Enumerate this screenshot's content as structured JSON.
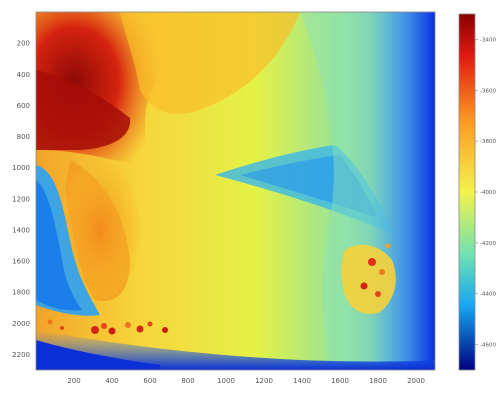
{
  "chart_data": {
    "type": "heatmap",
    "title": "",
    "xlabel": "",
    "ylabel": "",
    "xlim": [
      0,
      2100
    ],
    "ylim": [
      2300,
      0
    ],
    "x_ticks": [
      "200",
      "400",
      "600",
      "800",
      "1000",
      "1200",
      "1400",
      "1600",
      "1800",
      "2000"
    ],
    "y_ticks": [
      "200",
      "400",
      "600",
      "800",
      "1000",
      "1200",
      "1400",
      "1600",
      "1800",
      "2000",
      "2200"
    ],
    "colorbar": {
      "colormap": "jet",
      "range": [
        -4700,
        -3300
      ],
      "tick_values": [
        -3400,
        -3600,
        -3800,
        -4000,
        -4200,
        -4400,
        -4600
      ],
      "tick_labels": [
        "-3400",
        "-3600",
        "-3800",
        "-4000",
        "-4200",
        "-4400",
        "-4600"
      ],
      "high_color": "#8b0000",
      "low_color": "#00007f"
    },
    "regions": [
      {
        "name": "upper-left-high",
        "value": -3450,
        "color": "#c81e10"
      },
      {
        "name": "upper-center",
        "value": -3700,
        "color": "#f6a81e"
      },
      {
        "name": "middle-yellow",
        "value": -3850,
        "color": "#f0ea3a"
      },
      {
        "name": "left-lobe",
        "value": -3700,
        "color": "#f4b028"
      },
      {
        "name": "right-field",
        "value": -4050,
        "color": "#7ed6b4"
      },
      {
        "name": "right-edge",
        "value": -4450,
        "color": "#1a5cff"
      }
    ]
  }
}
